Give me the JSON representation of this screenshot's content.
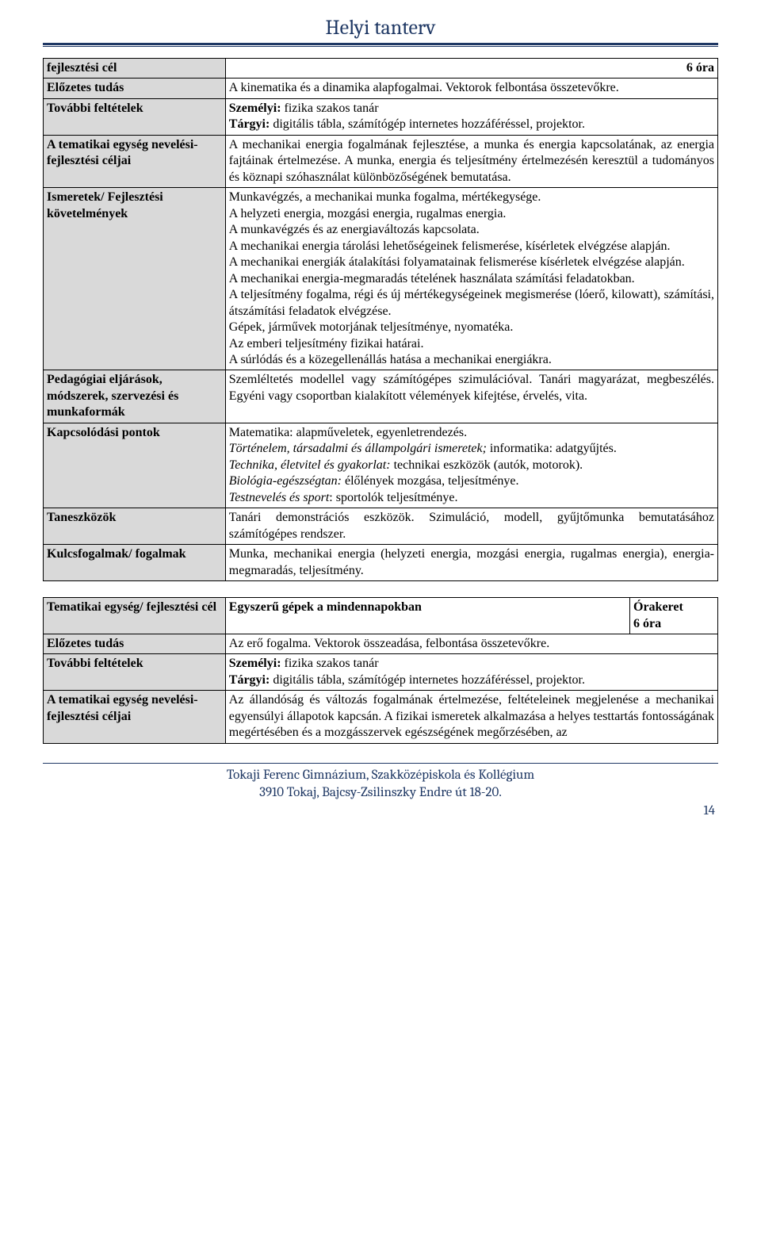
{
  "title": "Helyi tanterv",
  "table1": {
    "rows": [
      {
        "label": "fejlesztési cél",
        "content": "6 óra",
        "align": "right",
        "bold": true
      },
      {
        "label": "Előzetes tudás",
        "content": "A kinematika és a dinamika alapfogalmai. Vektorok felbontása összetevőkre."
      },
      {
        "label": "További feltételek",
        "content": "<b>Személyi:</b> fizika szakos tanár<br><b>Tárgyi:</b> digitális tábla, számítógép internetes hozzáféréssel, projektor."
      },
      {
        "label": "A tematikai egység nevelési-fejlesztési céljai",
        "content": "A mechanikai energia fogalmának fejlesztése, a munka és energia kapcsolatának, az energia fajtáinak értelmezése. A munka, energia és teljesítmény értelmezésén keresztül a tudományos és köznapi szóhasználat különbözőségének bemutatása."
      },
      {
        "label": "Ismeretek/ Fejlesztési követelmények",
        "content": "Munkavégzés, a mechanikai munka fogalma, mértékegysége.<br>A helyzeti energia, mozgási energia, rugalmas energia.<br>A munkavégzés és az energiaváltozás kapcsolata.<br>A mechanikai energia tárolási lehetőségeinek felismerése, kísérletek elvégzése alapján.<br>A mechanikai energiák átalakítási folyamatainak felismerése kísérletek elvégzése alapján.<br>A mechanikai energia-megmaradás tételének használata számítási feladatokban.<br>A teljesítmény fogalma, régi és új mértékegységeinek megismerése (lóerő, kilowatt), számítási, átszámítási feladatok elvégzése.<br>Gépek, járművek motorjának teljesítménye, nyomatéka.<br>Az emberi teljesítmény fizikai határai.<br>A súrlódás és a közegellenállás hatása a mechanikai energiákra."
      },
      {
        "label": "Pedagógiai eljárások, módszerek, szervezési és munkaformák",
        "content": "Szemléltetés modellel vagy számítógépes szimulációval. Tanári magyarázat, megbeszélés. Egyéni vagy csoportban kialakított vélemények kifejtése, érvelés, vita."
      },
      {
        "label": "Kapcsolódási pontok",
        "content": "Matematika: alapműveletek, egyenletrendezés.<br><i>Történelem, társadalmi és állampolgári ismeretek;</i> informatika: adatgyűjtés.<br><i>Technika, életvitel és gyakorlat:</i> technikai eszközök (autók, motorok).<br><i>Biológia-egészségtan:</i> élőlények mozgása, teljesítménye.<br><i>Testnevelés és sport</i>: sportolók teljesítménye."
      },
      {
        "label": "Taneszközök",
        "content": "Tanári demonstrációs eszközök. Szimuláció, modell, gyűjtőmunka bemutatásához számítógépes rendszer."
      },
      {
        "label": "Kulcsfogalmak/ fogalmak",
        "content": "Munka, mechanikai energia (helyzeti energia, mozgási energia, rugalmas energia), energia-megmaradás, teljesítmény."
      }
    ]
  },
  "table2": {
    "rows": [
      {
        "label": "Tematikai egység/ fejlesztési cél",
        "content_split": {
          "left": "Egyszerű gépek a mindennapokban",
          "right": "Órakeret<br>6 óra"
        }
      },
      {
        "label": "Előzetes tudás",
        "content": "Az erő fogalma. Vektorok összeadása, felbontása összetevőkre."
      },
      {
        "label": "További feltételek",
        "content": "<b>Személyi:</b> fizika szakos tanár<br><b>Tárgyi:</b> digitális tábla, számítógép internetes hozzáféréssel, projektor."
      },
      {
        "label": "A tematikai egység nevelési-fejlesztési céljai",
        "content": "Az állandóság és változás fogalmának értelmezése, feltételeinek megjelenése a mechanikai egyensúlyi állapotok kapcsán. A fizikai ismeretek alkalmazása a helyes testtartás fontosságának megértésében és a mozgásszervek egészségének megőrzésében, az"
      }
    ]
  },
  "footer": {
    "line1": "Tokaji Ferenc Gimnázium, Szakközépiskola és Kollégium",
    "line2": "3910 Tokaj, Bajcsy-Zsilinszky Endre út 18-20.",
    "pagenum": "14"
  }
}
